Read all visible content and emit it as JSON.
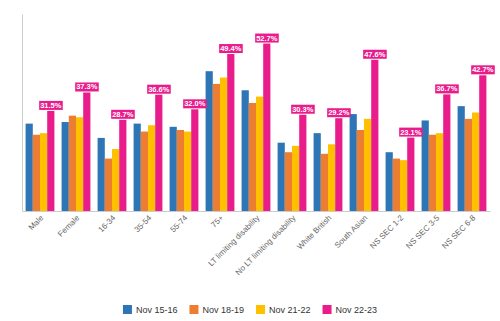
{
  "chart_data": {
    "type": "bar",
    "categories": [
      "Male",
      "Female",
      "16-34",
      "35-54",
      "55-74",
      "75+",
      "LT limiting disability",
      "No LT limiting disability",
      "White British",
      "South Asian",
      "NS SEC 1-2",
      "NS SEC 3-5",
      "NS SEC 6-8"
    ],
    "series": [
      {
        "name": "Nov 15-16",
        "color": "#2E75B6",
        "values": [
          27.5,
          28.0,
          23.0,
          27.5,
          26.5,
          44.0,
          38.0,
          21.5,
          24.5,
          30.5,
          18.5,
          28.5,
          33.0
        ]
      },
      {
        "name": "Nov 18-19",
        "color": "#ED7D31",
        "values": [
          24.0,
          30.0,
          16.5,
          25.0,
          25.5,
          40.0,
          34.0,
          18.5,
          18.0,
          25.5,
          16.5,
          24.0,
          29.0
        ]
      },
      {
        "name": "Nov 21-22",
        "color": "#FFC000",
        "values": [
          24.5,
          29.5,
          19.5,
          27.0,
          25.0,
          42.0,
          36.0,
          20.5,
          21.0,
          29.0,
          16.0,
          24.5,
          31.0
        ]
      },
      {
        "name": "Nov 22-23",
        "color": "#E91C8C",
        "values": [
          31.5,
          37.3,
          28.7,
          36.6,
          32.0,
          49.4,
          52.7,
          30.3,
          29.2,
          47.6,
          23.1,
          36.7,
          42.7
        ],
        "data_labels": true,
        "value_labels": [
          "31.5%",
          "37.3%",
          "28.7%",
          "36.6%",
          "32.0%",
          "49.4%",
          "52.7%",
          "30.3%",
          "29.2%",
          "47.6%",
          "23.1%",
          "36.7%",
          "42.7%"
        ]
      }
    ],
    "ylim": [
      0,
      62
    ],
    "grid": false,
    "legend": "bottom",
    "tick_labels": "x"
  }
}
